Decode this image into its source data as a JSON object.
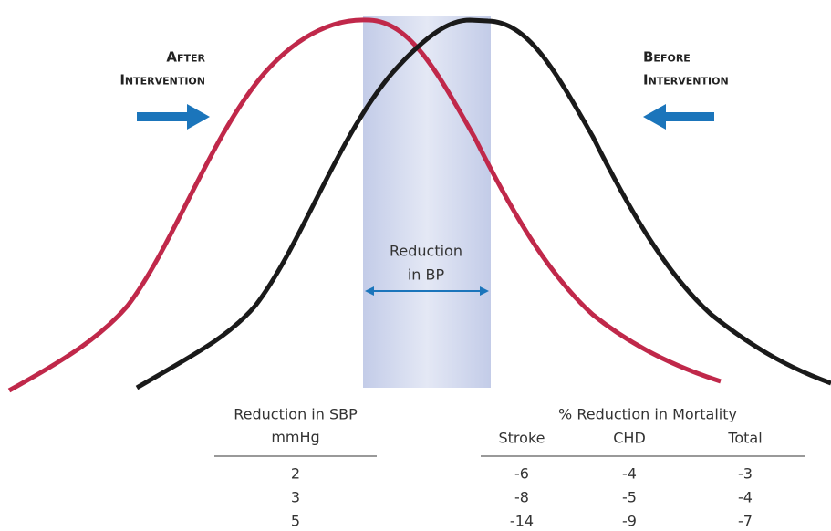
{
  "labels": {
    "after": [
      "After",
      "Intervention"
    ],
    "before": [
      "Before",
      "Intervention"
    ],
    "reduction": [
      "Reduction",
      "in BP"
    ]
  },
  "table": {
    "left_header": [
      "Reduction in SBP",
      "mmHg"
    ],
    "right_header": "% Reduction in Mortality",
    "columns": [
      "Stroke",
      "CHD",
      "Total"
    ],
    "rows": [
      [
        2,
        -6,
        -4,
        -3
      ],
      [
        3,
        -8,
        -5,
        -4
      ],
      [
        5,
        -14,
        -9,
        -7
      ]
    ]
  }
}
